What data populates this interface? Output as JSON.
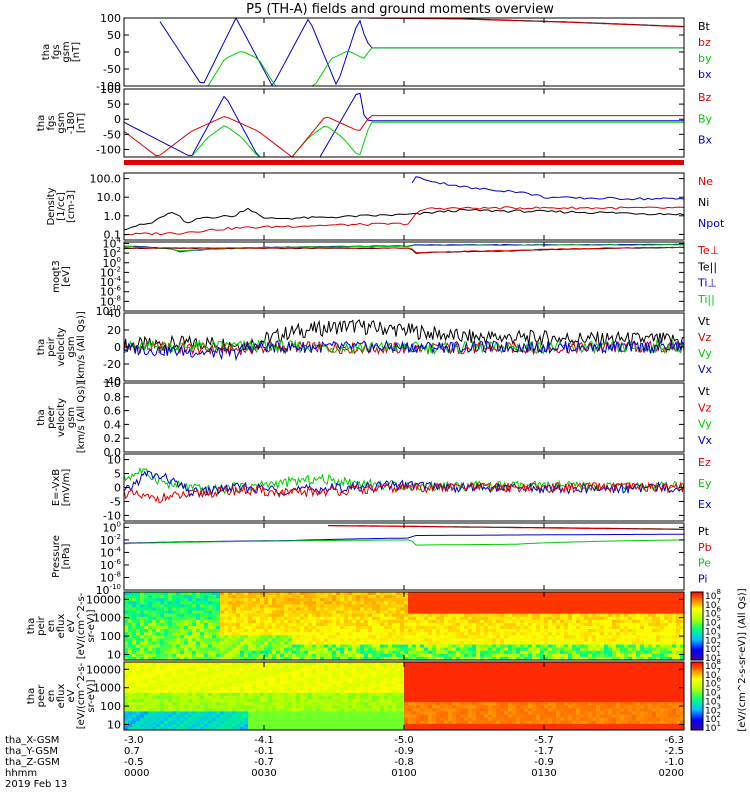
{
  "title": "P5 (TH-A) fields and ground moments overview",
  "footer": {
    "row_labels": [
      "tha_X-GSM",
      "tha_Y-GSM",
      "tha_Z-GSM",
      "hhmm",
      "2019 Feb 13"
    ],
    "columns": [
      {
        "x": "-3.0",
        "y": "0.7",
        "z": "-0.5",
        "t": "0000"
      },
      {
        "x": "-4.1",
        "y": "-0.1",
        "z": "-0.7",
        "t": "0030"
      },
      {
        "x": "-5.0",
        "y": "-0.9",
        "z": "-0.8",
        "t": "0100"
      },
      {
        "x": "-5.7",
        "y": "-1.7",
        "z": "-0.9",
        "t": "0130"
      },
      {
        "x": "-6.3",
        "y": "-2.5",
        "z": "-1.0",
        "t": "0200"
      }
    ]
  },
  "colors": {
    "black": "#000000",
    "red": "#e00000",
    "green": "#00cc00",
    "blue": "#0000cc"
  },
  "colorbar": {
    "label": "[eV/(cm^2-s-sr-eV)]",
    "label2": "(All Qs)]",
    "ticks": [
      "10^8",
      "10^7",
      "10^6",
      "10^5",
      "10^4",
      "10^3",
      "10^2",
      "10^1"
    ]
  },
  "chart_data": [
    {
      "type": "line",
      "ylabel": [
        "tha",
        "fgs",
        "gsm",
        "[nT]"
      ],
      "yticks": [
        "100",
        "50",
        "0",
        "-50",
        "-100"
      ],
      "ylim": [
        -100,
        100
      ],
      "x": [
        "0000",
        "0030",
        "0100",
        "0130",
        "0200"
      ],
      "legend": [
        {
          "name": "Bt",
          "color": "#000000"
        },
        {
          "name": "bz",
          "color": "#e00000"
        },
        {
          "name": "by",
          "color": "#00cc00"
        },
        {
          "name": "bx",
          "color": "#0000cc"
        }
      ],
      "series": [
        {
          "name": "bx",
          "color": "#0000cc",
          "x": [
            0.06,
            0.14,
            0.2,
            0.265,
            0.33,
            0.38,
            0.42,
            0.43,
            0.44,
            1.0
          ],
          "y": [
            100,
            -100,
            100,
            -100,
            100,
            -100,
            100,
            45,
            12,
            12
          ]
        },
        {
          "name": "by",
          "color": "#00cc00",
          "x": [
            0.15,
            0.18,
            0.21,
            0.24,
            0.27,
            0.34,
            0.37,
            0.4,
            0.43,
            0.44,
            1.0
          ],
          "y": [
            -100,
            -20,
            3,
            -20,
            -100,
            -100,
            -20,
            3,
            -20,
            12,
            12
          ]
        },
        {
          "name": "Bt",
          "color": "#000000",
          "x": [
            0.43,
            0.6,
            0.8,
            1.0
          ],
          "y": [
            100,
            98,
            88,
            75
          ]
        },
        {
          "name": "bz",
          "color": "#e00000",
          "x": [
            0.43,
            0.6,
            0.8,
            1.0
          ],
          "y": [
            100,
            97,
            87,
            74
          ]
        }
      ]
    },
    {
      "type": "line",
      "ylabel": [
        "tha",
        "fgs",
        "gsm",
        "-180",
        "[nT]"
      ],
      "yticks": [
        "100",
        "50",
        "0",
        "-50",
        "-100"
      ],
      "ylim": [
        -125,
        100
      ],
      "x": [
        "0000",
        "0030",
        "0100",
        "0130",
        "0200"
      ],
      "legend": [
        {
          "name": "Bz",
          "color": "#e00000"
        },
        {
          "name": "By",
          "color": "#00cc00"
        },
        {
          "name": "Bx",
          "color": "#0000cc"
        }
      ],
      "series": [
        {
          "name": "Bx",
          "color": "#0000cc",
          "x": [
            0.0,
            0.12,
            0.18,
            0.24,
            0.3,
            0.35,
            0.42,
            0.43,
            0.44,
            1.0
          ],
          "y": [
            -10,
            -125,
            80,
            -125,
            -125,
            -125,
            100,
            0,
            -5,
            -5
          ]
        },
        {
          "name": "By",
          "color": "#00cc00",
          "x": [
            0.12,
            0.15,
            0.18,
            0.21,
            0.24,
            0.3,
            0.33,
            0.36,
            0.39,
            0.42,
            0.44,
            1.0
          ],
          "y": [
            -125,
            -60,
            -20,
            -60,
            -125,
            -125,
            -60,
            -20,
            -60,
            -125,
            -10,
            -10
          ]
        },
        {
          "name": "Bz",
          "color": "#e00000",
          "x": [
            0.0,
            0.06,
            0.12,
            0.18,
            0.24,
            0.3,
            0.36,
            0.42,
            0.44,
            1.0
          ],
          "y": [
            -40,
            -125,
            -40,
            10,
            -40,
            -125,
            10,
            -40,
            12,
            12
          ]
        }
      ]
    },
    {
      "type": "line",
      "ylabel": [
        "Density",
        "[1/cc]",
        "[cm-3]"
      ],
      "yticks": [
        "100.0",
        "10.0",
        "1.0",
        "0.1"
      ],
      "log": true,
      "ylim": [
        0.05,
        200
      ],
      "x": [
        "0000",
        "0030",
        "0100",
        "0130",
        "0200"
      ],
      "legend": [
        {
          "name": "Ne",
          "color": "#e00000"
        },
        {
          "name": "Ni",
          "color": "#000000"
        },
        {
          "name": "Npot",
          "color": "#0000cc"
        }
      ],
      "series": [
        {
          "name": "Ni",
          "color": "#000000",
          "x": [
            0.0,
            0.05,
            0.09,
            0.11,
            0.14,
            0.2,
            0.22,
            0.25,
            0.35,
            0.52,
            0.6,
            1.0
          ],
          "y": [
            0.2,
            0.4,
            1.5,
            0.3,
            0.8,
            1.0,
            2.5,
            0.7,
            0.8,
            1.2,
            2.0,
            1.2
          ]
        },
        {
          "name": "Ne",
          "color": "#e00000",
          "x": [
            0.0,
            0.1,
            0.2,
            0.3,
            0.4,
            0.51,
            0.54,
            0.7,
            1.0
          ],
          "y": [
            0.1,
            0.12,
            0.22,
            0.28,
            0.33,
            0.38,
            2.5,
            2.7,
            2.6
          ]
        },
        {
          "name": "Npot",
          "color": "#0000cc",
          "x": [
            0.51,
            0.52,
            0.56,
            0.62,
            0.7,
            0.75,
            0.8,
            1.0
          ],
          "y": [
            10,
            120,
            60,
            30,
            20,
            10,
            9,
            8
          ]
        }
      ]
    },
    {
      "type": "line",
      "ylabel": [
        "moqt3",
        "[eV]"
      ],
      "yticks": [
        "10^4",
        "10^2",
        "10^0",
        "10^-2",
        "10^-4",
        "10^-6",
        "10^-8",
        "10^-10"
      ],
      "log": true,
      "ylim": [
        1e-10,
        20000
      ],
      "x": [
        "0000",
        "0030",
        "0100",
        "0130",
        "0200"
      ],
      "legend": [
        {
          "name": "Te⊥",
          "color": "#e00000"
        },
        {
          "name": "Te||",
          "color": "#000000"
        },
        {
          "name": "Ti⊥",
          "color": "#0000cc"
        },
        {
          "name": "Ti||",
          "color": "#00cc00"
        }
      ],
      "series": [
        {
          "name": "Ti⊥",
          "color": "#0000cc",
          "x": [
            0.0,
            0.1,
            0.2,
            0.3,
            0.51,
            0.52,
            1.0
          ],
          "y": [
            3000,
            200,
            1000,
            2000,
            3000,
            5000,
            6000
          ]
        },
        {
          "name": "Ti||",
          "color": "#00cc00",
          "x": [
            0.0,
            0.1,
            0.2,
            0.3,
            0.51,
            0.52,
            1.0
          ],
          "y": [
            2500,
            300,
            900,
            1800,
            2500,
            4000,
            5000
          ]
        },
        {
          "name": "Te||",
          "color": "#000000",
          "x": [
            0.0,
            0.2,
            0.4,
            0.51,
            0.52,
            0.7,
            1.0
          ],
          "y": [
            1000,
            1000,
            1000,
            1000,
            100,
            300,
            1500
          ]
        },
        {
          "name": "Te⊥",
          "color": "#e00000",
          "x": [
            0.0,
            0.2,
            0.4,
            0.51,
            0.52,
            0.7,
            1.0
          ],
          "y": [
            1200,
            1100,
            1100,
            1100,
            120,
            350,
            1700
          ]
        }
      ]
    },
    {
      "type": "line",
      "ylabel": [
        "tha",
        "peir",
        "velocity",
        "gsm",
        "[km/s (All Qs)]"
      ],
      "yticks": [
        "40",
        "20",
        "0",
        "-20",
        "-40"
      ],
      "ylim": [
        -40,
        40
      ],
      "x": [
        "0000",
        "0030",
        "0100",
        "0130",
        "0200"
      ],
      "legend": [
        {
          "name": "Vt",
          "color": "#000000"
        },
        {
          "name": "Vz",
          "color": "#e00000"
        },
        {
          "name": "Vy",
          "color": "#00cc00"
        },
        {
          "name": "Vx",
          "color": "#0000cc"
        }
      ],
      "series": [
        {
          "name": "Vt",
          "color": "#000000",
          "x": [
            0.0,
            0.15,
            0.22,
            0.3,
            0.4,
            0.5,
            0.6,
            1.0
          ],
          "y": [
            2,
            5,
            3,
            18,
            25,
            20,
            12,
            8
          ]
        },
        {
          "name": "Vz",
          "color": "#e00000",
          "x": [
            0.0,
            0.2,
            0.3,
            0.5,
            1.0
          ],
          "y": [
            0,
            -3,
            0,
            -2,
            0
          ]
        },
        {
          "name": "Vy",
          "color": "#00cc00",
          "x": [
            0.0,
            0.2,
            0.5,
            1.0
          ],
          "y": [
            0,
            1,
            -1,
            0
          ]
        },
        {
          "name": "Vx",
          "color": "#0000cc",
          "x": [
            0.0,
            0.1,
            0.2,
            0.22,
            1.0
          ],
          "y": [
            -2,
            -5,
            -8,
            0,
            0
          ]
        }
      ]
    },
    {
      "type": "line",
      "ylabel": [
        "tha",
        "peer",
        "velocity",
        "gsm",
        "[km/s (All Qs)]"
      ],
      "yticks": [
        "1.0",
        "0.8",
        "0.6",
        "0.4",
        "0.2",
        "0.0"
      ],
      "ylim": [
        0,
        1
      ],
      "x": [
        "0000",
        "0030",
        "0100",
        "0130",
        "0200"
      ],
      "legend": [
        {
          "name": "Vt",
          "color": "#000000"
        },
        {
          "name": "Vz",
          "color": "#e00000"
        },
        {
          "name": "Vy",
          "color": "#00cc00"
        },
        {
          "name": "Vx",
          "color": "#0000cc"
        }
      ],
      "series": []
    },
    {
      "type": "line",
      "ylabel": [
        "E=-VxB",
        "[mV/m]"
      ],
      "yticks": [
        "10",
        "5",
        "0",
        "-5",
        "-10"
      ],
      "ylim": [
        -12,
        12
      ],
      "x": [
        "0000",
        "0030",
        "0100",
        "0130",
        "0200"
      ],
      "legend": [
        {
          "name": "Ez",
          "color": "#e00000"
        },
        {
          "name": "Ey",
          "color": "#00cc00"
        },
        {
          "name": "Ex",
          "color": "#0000cc"
        }
      ],
      "series": [
        {
          "name": "Ey",
          "color": "#00cc00",
          "x": [
            0.0,
            0.03,
            0.08,
            0.15,
            0.25,
            0.35,
            0.45,
            0.55,
            0.7,
            1.0
          ],
          "y": [
            3,
            6,
            1,
            -1,
            1,
            3,
            1,
            0.5,
            0.5,
            0.3
          ]
        },
        {
          "name": "Ex",
          "color": "#0000cc",
          "x": [
            0.0,
            0.04,
            0.08,
            0.12,
            0.2,
            0.3,
            0.4,
            0.5,
            0.6,
            0.8,
            1.0
          ],
          "y": [
            -2,
            5,
            3,
            -2,
            0,
            -1,
            0,
            1,
            0,
            -0.5,
            0
          ]
        },
        {
          "name": "Ez",
          "color": "#e00000",
          "x": [
            0.0,
            0.05,
            0.1,
            0.2,
            0.3,
            0.4,
            0.5,
            0.7,
            1.0
          ],
          "y": [
            -2,
            -4,
            -3,
            -1,
            -2,
            -1,
            0,
            0,
            0
          ]
        }
      ]
    },
    {
      "type": "line",
      "ylabel": [
        "Pressure",
        "[nPa]"
      ],
      "yticks": [
        "10^0",
        "10^-2",
        "10^-4",
        "10^-6",
        "10^-8",
        "10^-10"
      ],
      "log": true,
      "ylim": [
        1e-10,
        5
      ],
      "x": [
        "0000",
        "0030",
        "0100",
        "0130",
        "0200"
      ],
      "legend": [
        {
          "name": "Pt",
          "color": "#000000"
        },
        {
          "name": "Pb",
          "color": "#e00000"
        },
        {
          "name": "Pe",
          "color": "#00cc00"
        },
        {
          "name": "Pi",
          "color": "#0000cc"
        }
      ],
      "series": [
        {
          "name": "Pt",
          "color": "#000000",
          "x": [
            0.36,
            0.6,
            0.8,
            1.0
          ],
          "y": [
            2,
            1.2,
            0.8,
            0.5
          ]
        },
        {
          "name": "Pb",
          "color": "#e00000",
          "x": [
            0.36,
            0.6,
            0.8,
            1.0
          ],
          "y": [
            1.8,
            1.1,
            0.7,
            0.45
          ]
        },
        {
          "name": "Pi",
          "color": "#0000cc",
          "x": [
            0.0,
            0.3,
            0.51,
            0.52,
            1.0
          ],
          "y": [
            0.003,
            0.008,
            0.02,
            0.05,
            0.08
          ]
        },
        {
          "name": "Pe",
          "color": "#00cc00",
          "x": [
            0.0,
            0.3,
            0.51,
            0.52,
            0.7,
            1.0
          ],
          "y": [
            0.0025,
            0.007,
            0.01,
            0.0015,
            0.002,
            0.01
          ]
        }
      ]
    },
    {
      "type": "heatmap",
      "ylabel": [
        "tha",
        "peir",
        "en",
        "eflux",
        "eV",
        "[eV/(cm^2-s-",
        "sr-eV)]"
      ],
      "yticks": [
        "10000",
        "1000",
        "100",
        "10"
      ],
      "log": true,
      "ylim": [
        5,
        25000
      ],
      "x": [
        "0000",
        "0030",
        "0100",
        "0130",
        "0200"
      ]
    },
    {
      "type": "heatmap",
      "ylabel": [
        "tha",
        "peer",
        "en",
        "eflux",
        "eV",
        "[eV/(cm^2-s-",
        "sr-eV)]"
      ],
      "yticks": [
        "10000",
        "1000",
        "100",
        "10"
      ],
      "log": true,
      "ylim": [
        5,
        25000
      ],
      "x": [
        "0000",
        "0030",
        "0100",
        "0130",
        "0200"
      ]
    }
  ]
}
